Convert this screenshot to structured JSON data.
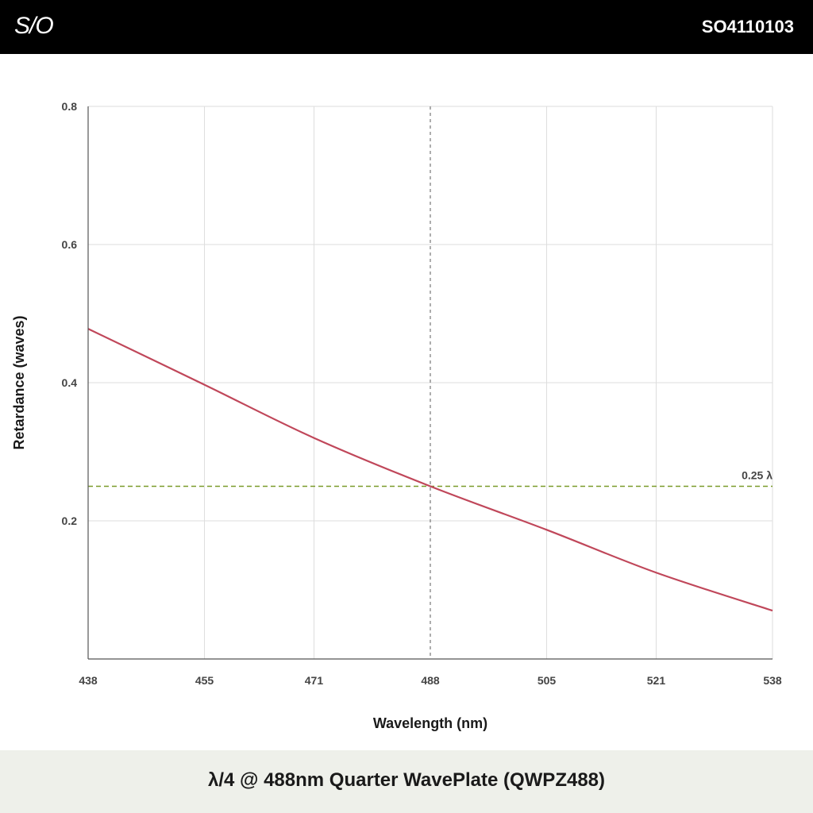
{
  "header": {
    "logo_text": "S/O",
    "part_number": "SO4110103"
  },
  "footer": {
    "product_title": "λ/4 @ 488nm Quarter WavePlate (QWPZ488)"
  },
  "colors": {
    "curve": "#c0475a",
    "reference_line": "#7a9a2a",
    "marker_line": "#777777",
    "grid": "#dddddd"
  },
  "chart_data": {
    "type": "line",
    "xlabel": "Wavelength (nm)",
    "ylabel": "Retardance (waves)",
    "xlim": [
      438,
      538
    ],
    "ylim": [
      0,
      0.8
    ],
    "x_ticks": [
      438,
      455,
      471,
      488,
      505,
      521,
      538
    ],
    "y_ticks": [
      0.2,
      0.4,
      0.6,
      0.8
    ],
    "grid": true,
    "series": [
      {
        "x": [
          438,
          455,
          471,
          488,
          505,
          521,
          538
        ],
        "y": [
          0.478,
          0.397,
          0.32,
          0.25,
          0.187,
          0.125,
          0.07
        ]
      }
    ],
    "reference_line": {
      "y": 0.25,
      "label": "0.25 λ"
    },
    "marker_line": {
      "x": 488
    }
  }
}
